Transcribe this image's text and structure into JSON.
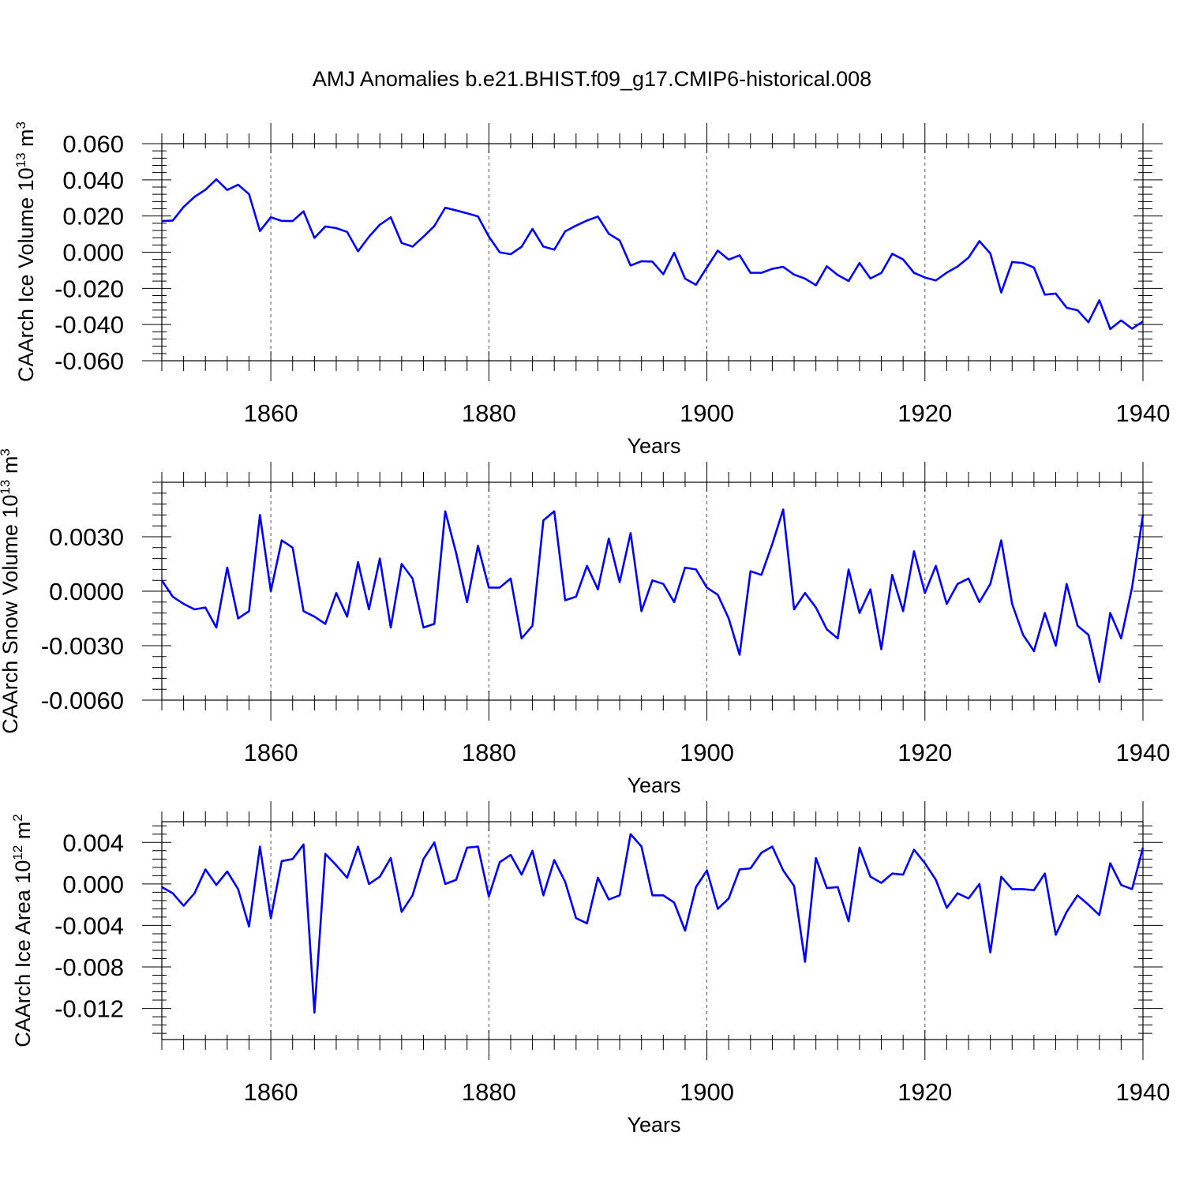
{
  "figure_title": "AMJ Anomalies b.e21.BHIST.f09_g17.CMIP6-historical.008",
  "chart_data": [
    {
      "type": "line",
      "name": "ice-volume",
      "title": "AMJ Anomalies b.e21.BHIST.f09_g17.CMIP6-historical.008",
      "ylabel_main": "CAArch Ice Volume 10",
      "ylabel_exp": "13",
      "ylabel_unit": " m",
      "ylabel_unit_exp": "3",
      "xlabel": "Years",
      "xlim": [
        1850,
        1940
      ],
      "ylim": [
        -0.06,
        0.06
      ],
      "grid": "dashed-vertical",
      "xticks": [
        1860,
        1880,
        1900,
        1920,
        1940
      ],
      "xtick_labels": [
        "1860",
        "1880",
        "1900",
        "1920",
        "1940"
      ],
      "yticks": [
        0.06,
        0.04,
        0.02,
        0.0,
        -0.02,
        -0.04,
        -0.06
      ],
      "ytick_labels": [
        "0.060",
        "0.040",
        "0.020",
        "0.000",
        "-0.020",
        "-0.040",
        "-0.060"
      ],
      "x_start": 1850,
      "values": [
        0.0172,
        0.0175,
        0.025,
        0.0306,
        0.0345,
        0.0403,
        0.0344,
        0.0373,
        0.0321,
        0.0117,
        0.0193,
        0.0173,
        0.0172,
        0.0226,
        0.0079,
        0.0142,
        0.0133,
        0.0112,
        0.0005,
        0.0085,
        0.0152,
        0.0193,
        0.0051,
        0.0031,
        0.0086,
        0.0145,
        0.0246,
        0.0231,
        0.0215,
        0.0198,
        0.0086,
        -0.0001,
        -0.0011,
        0.003,
        0.0129,
        0.0031,
        0.0014,
        0.0115,
        0.0147,
        0.0175,
        0.0197,
        0.0102,
        0.0065,
        -0.0074,
        -0.005,
        -0.0052,
        -0.0122,
        -0.0003,
        -0.0146,
        -0.018,
        -0.0084,
        0.0009,
        -0.0041,
        -0.0017,
        -0.0114,
        -0.0114,
        -0.0092,
        -0.0081,
        -0.0124,
        -0.0146,
        -0.0183,
        -0.0078,
        -0.0126,
        -0.0159,
        -0.006,
        -0.0145,
        -0.0115,
        -0.0009,
        -0.004,
        -0.0114,
        -0.014,
        -0.0156,
        -0.0113,
        -0.0079,
        -0.003,
        0.0061,
        -0.0007,
        -0.0223,
        -0.0054,
        -0.006,
        -0.0085,
        -0.0235,
        -0.0229,
        -0.0307,
        -0.0321,
        -0.0387,
        -0.0266,
        -0.0425,
        -0.0377,
        -0.0423,
        -0.0383
      ]
    },
    {
      "type": "line",
      "name": "snow-volume",
      "ylabel_main": "CAArch Snow Volume 10",
      "ylabel_exp": "13",
      "ylabel_unit": " m",
      "ylabel_unit_exp": "3",
      "xlabel": "Years",
      "xlim": [
        1850,
        1940
      ],
      "ylim": [
        -0.006,
        0.006
      ],
      "grid": "dashed-vertical",
      "xticks": [
        1860,
        1880,
        1900,
        1920,
        1940
      ],
      "xtick_labels": [
        "1860",
        "1880",
        "1900",
        "1920",
        "1940"
      ],
      "yticks": [
        0.003,
        0.0,
        -0.003,
        -0.006
      ],
      "ytick_labels": [
        "0.0030",
        "0.0000",
        "-0.0030",
        "-0.0060"
      ],
      "x_start": 1850,
      "values": [
        0.0006,
        -0.0003,
        -0.0007,
        -0.001,
        -0.0009,
        -0.002,
        0.0013,
        -0.0015,
        -0.0011,
        0.0042,
        0.0,
        0.0028,
        0.0024,
        -0.0011,
        -0.0014,
        -0.0018,
        -0.0001,
        -0.0014,
        0.0016,
        -0.001,
        0.0018,
        -0.002,
        0.0015,
        0.0007,
        -0.002,
        -0.0018,
        0.0044,
        0.0021,
        -0.0006,
        0.0025,
        0.0002,
        0.0002,
        0.0007,
        -0.0026,
        -0.0019,
        0.0039,
        0.0044,
        -0.0005,
        -0.0003,
        0.0014,
        0.0001,
        0.0029,
        0.0005,
        0.0032,
        -0.0011,
        0.0006,
        0.0004,
        -0.0006,
        0.0013,
        0.0012,
        0.0002,
        -0.0002,
        -0.0015,
        -0.0035,
        0.0011,
        0.0009,
        0.0026,
        0.0045,
        -0.001,
        -0.0001,
        -0.0009,
        -0.0021,
        -0.0026,
        0.0012,
        -0.0012,
        0.0001,
        -0.0032,
        0.0009,
        -0.0011,
        0.0022,
        -0.0001,
        0.0014,
        -0.0007,
        0.0004,
        0.0007,
        -0.0006,
        0.0004,
        0.0028,
        -0.0007,
        -0.0024,
        -0.0033,
        -0.0012,
        -0.003,
        0.0004,
        -0.0019,
        -0.0024,
        -0.005,
        -0.0012,
        -0.0026,
        0.0002,
        0.0042
      ]
    },
    {
      "type": "line",
      "name": "ice-area",
      "ylabel_main": "CAArch Ice Area 10",
      "ylabel_exp": "12",
      "ylabel_unit": " m",
      "ylabel_unit_exp": "2",
      "xlabel": "Years",
      "xlim": [
        1850,
        1940
      ],
      "ylim": [
        -0.015,
        0.006
      ],
      "grid": "dashed-vertical",
      "xticks": [
        1860,
        1880,
        1900,
        1920,
        1940
      ],
      "xtick_labels": [
        "1860",
        "1880",
        "1900",
        "1920",
        "1940"
      ],
      "yticks": [
        0.004,
        0.0,
        -0.004,
        -0.008,
        -0.012
      ],
      "ytick_labels": [
        "0.004",
        "0.000",
        "-0.004",
        "-0.008",
        "-0.012"
      ],
      "x_start": 1850,
      "values": [
        -0.0003,
        -0.0009,
        -0.0021,
        -0.0009,
        0.0014,
        -0.0001,
        0.0012,
        -0.0005,
        -0.0041,
        0.0036,
        -0.0033,
        0.0022,
        0.0024,
        0.0038,
        -0.0124,
        0.0029,
        0.0018,
        0.0006,
        0.0036,
        0.0,
        0.0007,
        0.0025,
        -0.0027,
        -0.0011,
        0.0024,
        0.004,
        0.0,
        0.0004,
        0.0035,
        0.0036,
        -0.0012,
        0.0021,
        0.0028,
        0.0009,
        0.0032,
        -0.0011,
        0.0023,
        0.0002,
        -0.0033,
        -0.0038,
        0.0006,
        -0.0015,
        -0.0011,
        0.0048,
        0.0036,
        -0.0011,
        -0.0011,
        -0.0018,
        -0.0045,
        -0.0003,
        0.0013,
        -0.0024,
        -0.0014,
        0.0014,
        0.0015,
        0.003,
        0.0036,
        0.0013,
        -0.0002,
        -0.0075,
        0.0025,
        -0.0004,
        -0.0003,
        -0.0036,
        0.0035,
        0.0007,
        0.0001,
        0.001,
        0.0009,
        0.0033,
        0.002,
        0.0004,
        -0.0023,
        -0.0009,
        -0.0014,
        0.0,
        -0.0066,
        0.0007,
        -0.0005,
        -0.0005,
        -0.0006,
        0.001,
        -0.0049,
        -0.0027,
        -0.0011,
        -0.002,
        -0.003,
        0.002,
        -0.0001,
        -0.0005,
        0.0035
      ]
    }
  ]
}
